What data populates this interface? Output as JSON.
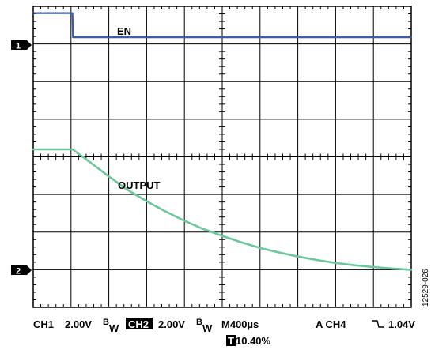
{
  "figure_id": "12529-026",
  "channel_markers": [
    {
      "label": "1"
    },
    {
      "label": "2"
    }
  ],
  "status": {
    "ch1_label": "CH1",
    "ch1_scale": "2.00V",
    "ch1_bw": "B",
    "ch1_bw_sub": "W",
    "ch2_label": "CH2",
    "ch2_scale": "2.00V",
    "ch2_bw": "B",
    "ch2_bw_sub": "W",
    "timebase": "M400µs",
    "trigger": "A  CH4",
    "trigger_slope_icon": "falling-edge-icon",
    "trigger_level": "1.04V",
    "trigger_pos_marker": "T",
    "trigger_pos": "10.40%"
  },
  "colors": {
    "ch1": "#3a5ea8",
    "ch2": "#6cc79a",
    "grid": "#000000",
    "background": "#ffffff"
  },
  "chart_data": {
    "type": "line",
    "title": "",
    "xlabel": "",
    "ylabel": "",
    "grid": true,
    "x_divisions": 10,
    "y_divisions": 8,
    "xlim": [
      0,
      10
    ],
    "ylim": [
      0,
      8
    ],
    "series": [
      {
        "name": "EN",
        "channel": 1,
        "color": "#3a5ea8",
        "x": [
          0,
          1.04,
          1.05,
          10
        ],
        "y": [
          7.82,
          7.82,
          7.18,
          7.18
        ]
      },
      {
        "name": "OUTPUT",
        "channel": 2,
        "color": "#6cc79a",
        "x": [
          0,
          1.04,
          1.5,
          2,
          2.5,
          3,
          3.5,
          4,
          4.5,
          5,
          5.5,
          6,
          6.5,
          7,
          7.5,
          8,
          8.5,
          9,
          9.5,
          10
        ],
        "y": [
          4.2,
          4.2,
          3.86,
          3.48,
          3.12,
          2.82,
          2.55,
          2.3,
          2.08,
          1.9,
          1.73,
          1.58,
          1.46,
          1.35,
          1.26,
          1.18,
          1.12,
          1.07,
          1.03,
          1.0
        ]
      }
    ]
  }
}
